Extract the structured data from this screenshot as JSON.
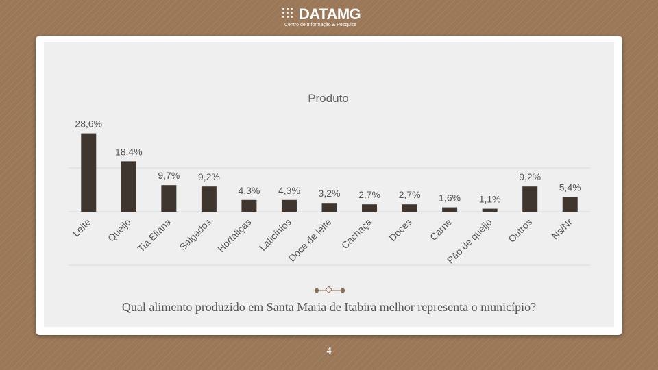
{
  "logo": {
    "name": "DATAMG",
    "tagline": "Centro de Informação & Pesquisa"
  },
  "question": "Qual alimento produzido em Santa Maria de Itabira melhor representa o município?",
  "page_number": "4",
  "colors": {
    "bar": "#403630",
    "background": "#9a7858",
    "panel": "#efefef",
    "accent": "#8a6a4d"
  },
  "chart_data": {
    "type": "bar",
    "title": "Produto",
    "xlabel": "",
    "ylabel": "",
    "categories": [
      "Leite",
      "Queijo",
      "Tia Eliana",
      "Salgados",
      "Hortaliças",
      "Laticínios",
      "Doce de leite",
      "Cachaça",
      "Doces",
      "Carne",
      "Pão de queijo",
      "Outros",
      "Ns/Nr"
    ],
    "values": [
      28.6,
      18.4,
      9.7,
      9.2,
      4.3,
      4.3,
      3.2,
      2.7,
      2.7,
      1.6,
      1.1,
      9.2,
      5.4
    ],
    "value_labels": [
      "28,6%",
      "18,4%",
      "9,7%",
      "9,2%",
      "4,3%",
      "4,3%",
      "3,2%",
      "2,7%",
      "2,7%",
      "1,6%",
      "1,1%",
      "9,2%",
      "5,4%"
    ],
    "ylim": [
      0,
      30
    ],
    "grid": true,
    "legend": "none"
  }
}
